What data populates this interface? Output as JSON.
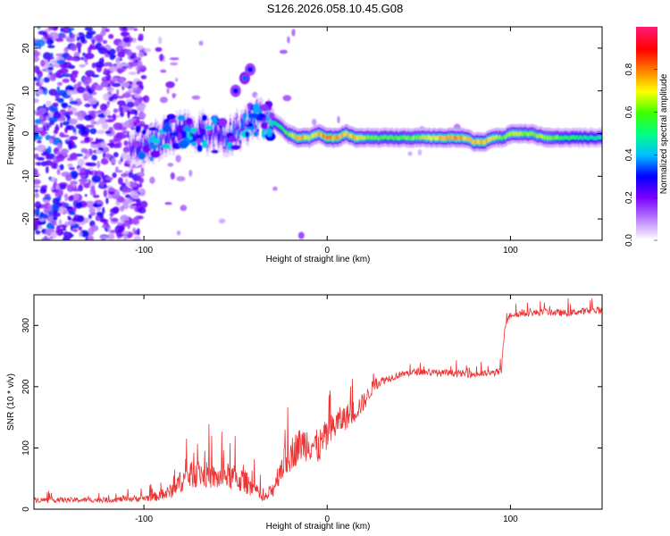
{
  "title": "S126.2026.058.10.45.G08",
  "chart_data": [
    {
      "type": "heatmap",
      "title": "S126.2026.058.10.45.G08",
      "xlabel": "Height of straight line (km)",
      "ylabel": "Frequency (Hz)",
      "xlim": [
        -160,
        150
      ],
      "ylim": [
        -25,
        25
      ],
      "xticks": [
        -100,
        0,
        100
      ],
      "yticks": [
        -20,
        -10,
        0,
        10,
        20
      ],
      "colorbar": {
        "label": "Normalized spectral amplitude",
        "range": [
          0,
          1
        ],
        "ticks": [
          0.0,
          0.2,
          0.4,
          0.6,
          0.8
        ],
        "colors": [
          "#ffffff",
          "#b77dff",
          "#7a00ff",
          "#0000ff",
          "#00c0ff",
          "#00ff80",
          "#40ff00",
          "#ffff00",
          "#ff8000",
          "#ff0000",
          "#ff1a6e"
        ]
      },
      "ridge": {
        "x": [
          -105,
          -95,
          -85,
          -75,
          -65,
          -55,
          -45,
          -38,
          -32,
          -27,
          -22,
          -17,
          -10,
          -5,
          0,
          5,
          10,
          15,
          20,
          30,
          40,
          50,
          60,
          70,
          75,
          80,
          85,
          90,
          95,
          100,
          110,
          120,
          130,
          140,
          150
        ],
        "frequency": [
          -3,
          -2,
          0,
          1,
          0,
          -1,
          2,
          4,
          3,
          2,
          0,
          -1,
          -1,
          0,
          -1,
          -1,
          0,
          -1,
          -1,
          -1,
          -1,
          -1,
          -1,
          -1,
          -1,
          -2,
          -2,
          -1,
          -1,
          0,
          0,
          -1,
          -1,
          -1,
          -1
        ],
        "amplitude": [
          0.3,
          0.45,
          0.35,
          0.35,
          0.3,
          0.4,
          0.45,
          0.45,
          0.5,
          0.6,
          0.7,
          0.9,
          0.8,
          0.85,
          0.95,
          0.9,
          0.85,
          0.9,
          0.75,
          0.7,
          0.7,
          0.75,
          0.85,
          0.9,
          0.85,
          0.85,
          0.9,
          0.8,
          0.7,
          0.8,
          0.75,
          0.75,
          0.65,
          0.6,
          0.55
        ]
      },
      "secondary_signal": {
        "x": [
          -50,
          -45,
          -42
        ],
        "frequency": [
          10,
          13,
          15
        ],
        "amplitude": [
          0.3,
          0.35,
          0.3
        ]
      }
    },
    {
      "type": "line",
      "xlabel": "Height of straight line (km)",
      "ylabel": "SNR (10 * v/v)",
      "xlim": [
        -160,
        150
      ],
      "ylim": [
        0,
        350
      ],
      "xticks": [
        -100,
        0,
        100
      ],
      "yticks": [
        0,
        100,
        200,
        300
      ],
      "color": "#ee3333",
      "series": [
        {
          "name": "SNR",
          "x": [
            -160,
            -140,
            -120,
            -100,
            -90,
            -85,
            -80,
            -75,
            -70,
            -65,
            -60,
            -55,
            -50,
            -45,
            -40,
            -35,
            -30,
            -25,
            -20,
            -15,
            -10,
            -5,
            0,
            5,
            10,
            15,
            20,
            25,
            30,
            40,
            50,
            60,
            70,
            80,
            90,
            95,
            97,
            100,
            110,
            120,
            130,
            140,
            150
          ],
          "y": [
            15,
            15,
            15,
            18,
            22,
            30,
            45,
            55,
            60,
            55,
            50,
            55,
            50,
            45,
            35,
            15,
            30,
            70,
            90,
            105,
            110,
            100,
            120,
            140,
            150,
            160,
            175,
            200,
            210,
            220,
            225,
            222,
            222,
            220,
            222,
            225,
            300,
            318,
            320,
            322,
            320,
            323,
            325
          ],
          "noise": [
            6,
            6,
            6,
            8,
            12,
            18,
            25,
            30,
            35,
            30,
            28,
            30,
            32,
            28,
            20,
            8,
            20,
            35,
            40,
            40,
            45,
            40,
            40,
            35,
            30,
            28,
            22,
            15,
            10,
            8,
            8,
            8,
            8,
            8,
            8,
            8,
            8,
            8,
            8,
            8,
            8,
            8,
            8
          ]
        }
      ]
    }
  ]
}
